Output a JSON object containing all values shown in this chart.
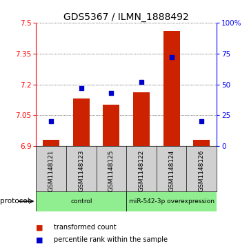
{
  "title": "GDS5367 / ILMN_1888492",
  "samples": [
    "GSM1148121",
    "GSM1148123",
    "GSM1148125",
    "GSM1148122",
    "GSM1148124",
    "GSM1148126"
  ],
  "bar_values": [
    6.93,
    7.13,
    7.1,
    7.16,
    7.46,
    6.93
  ],
  "dot_percentiles": [
    20,
    47,
    43,
    52,
    72,
    20
  ],
  "ylim_left": [
    6.9,
    7.5
  ],
  "ylim_right": [
    0,
    100
  ],
  "yticks_left": [
    6.9,
    7.05,
    7.2,
    7.35,
    7.5
  ],
  "yticks_right": [
    0,
    25,
    50,
    75,
    100
  ],
  "ytick_labels_left": [
    "6.9",
    "7.05",
    "7.2",
    "7.35",
    "7.5"
  ],
  "ytick_labels_right": [
    "0",
    "25",
    "50",
    "75",
    "100%"
  ],
  "groups": [
    {
      "label": "control",
      "start": 0,
      "end": 3,
      "color": "#90ee90"
    },
    {
      "label": "miR-542-3p overexpression",
      "start": 3,
      "end": 6,
      "color": "#90ee90"
    }
  ],
  "bar_color": "#cc2200",
  "dot_color": "#0000cc",
  "bar_width": 0.55,
  "grid_color": "#888888",
  "bg_color": "#ffffff",
  "legend_square_color_bar": "#cc2200",
  "legend_square_color_dot": "#0000cc",
  "legend_text_bar": "transformed count",
  "legend_text_dot": "percentile rank within the sample",
  "protocol_label": "protocol",
  "fontsize_title": 10,
  "fontsize_ticks": 7.5,
  "fontsize_legend": 7,
  "fontsize_samples": 6.5,
  "fontsize_groups": 6.5
}
